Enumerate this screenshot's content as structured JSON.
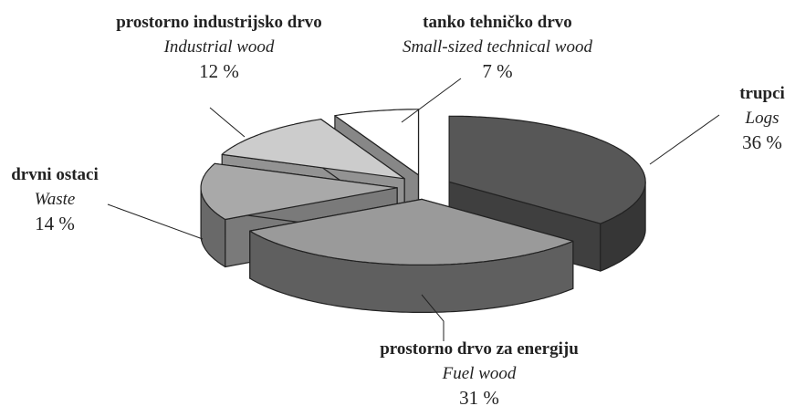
{
  "chart_data": {
    "type": "pie3d",
    "categories": [
      "trupci",
      "prostorno drvo za energiju",
      "drvni ostaci",
      "prostorno industrijsko drvo",
      "tanko tehničko drvo"
    ],
    "categories_en": [
      "Logs",
      "Fuel wood",
      "Waste",
      "Industrial wood",
      "Small-sized technical wood"
    ],
    "values": [
      36,
      31,
      14,
      12,
      7
    ],
    "value_labels": [
      "36 %",
      "31 %",
      "14 %",
      "12 %",
      "7 %"
    ],
    "colors": [
      "#575757",
      "#9a9a9a",
      "#a9a9a9",
      "#cccccc",
      "#ffffff"
    ]
  }
}
